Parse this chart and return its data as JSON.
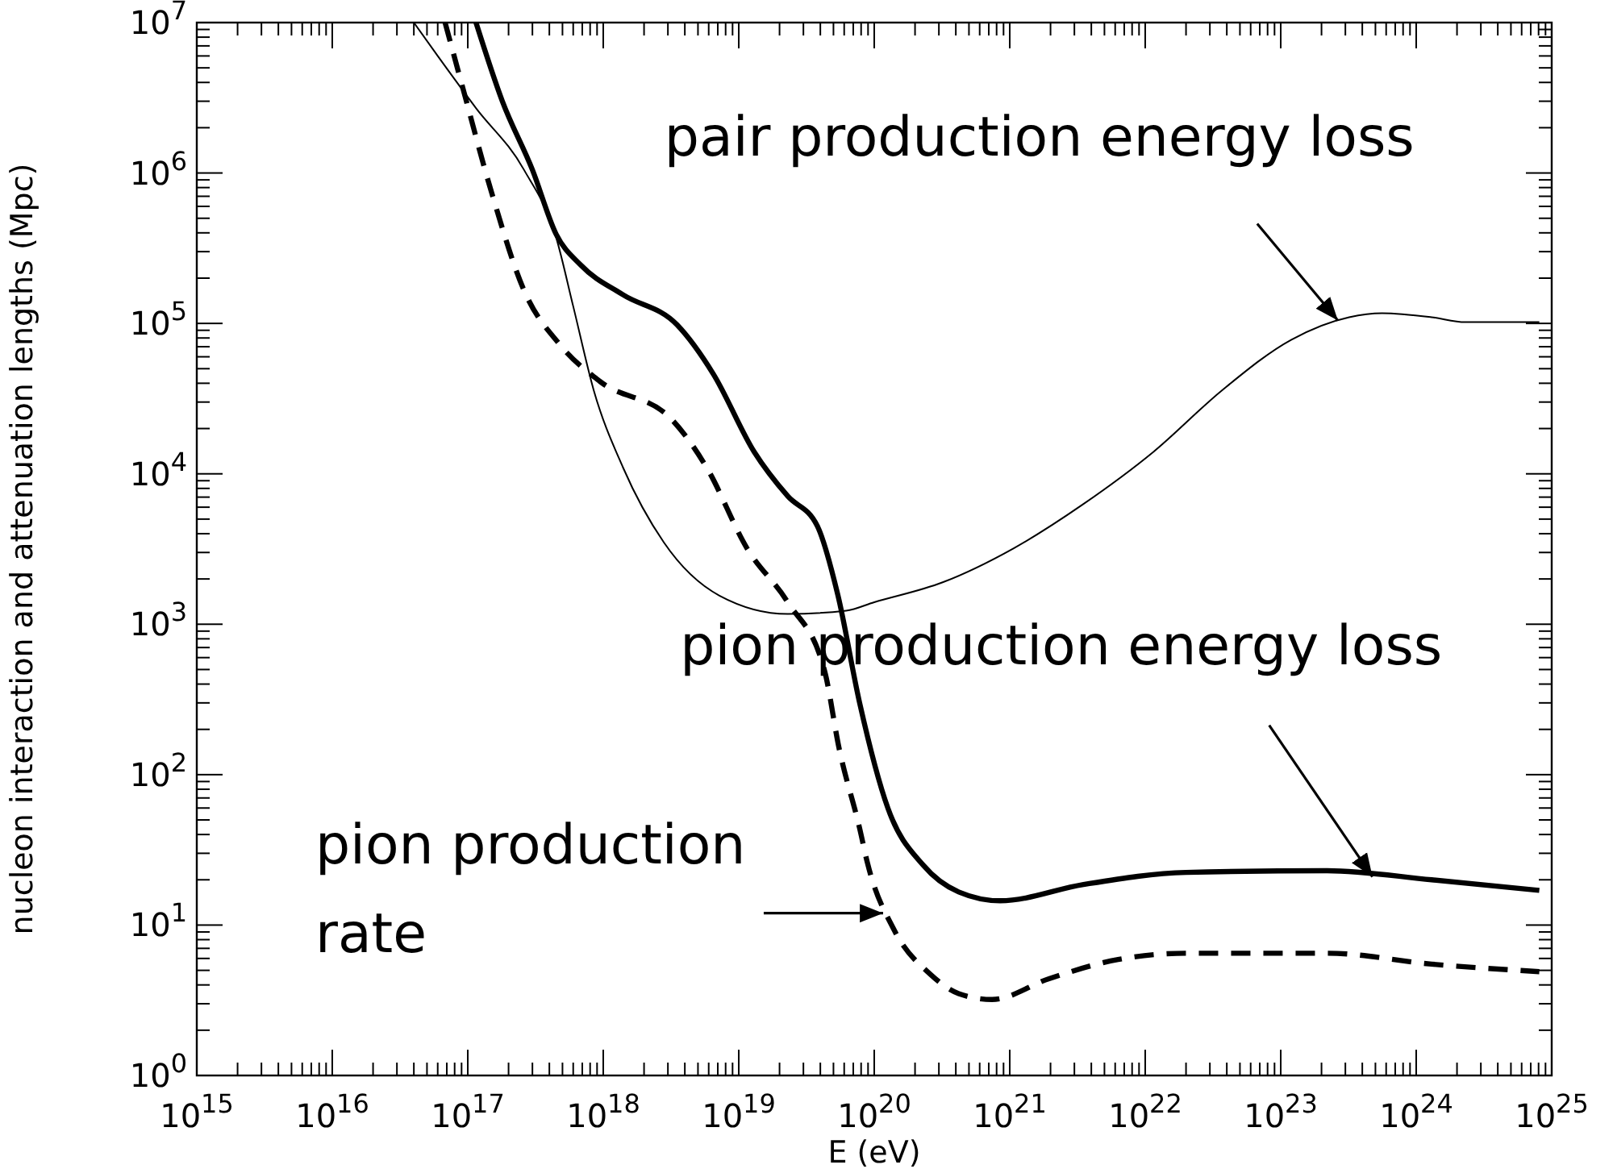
{
  "chart_data": {
    "type": "line",
    "xlabel": "E (eV)",
    "ylabel": "nucleon interaction and attenuation lengths (Mpc)",
    "log": "xy",
    "grid": false,
    "marker": "none",
    "xlim": [
      1000000000000000.0,
      1e+25
    ],
    "ylim": [
      1,
      10000000.0
    ],
    "xticks": [
      {
        "value": 1000000000000000.0,
        "label": "10$^{15}$"
      },
      {
        "value": 1e+16,
        "label": "10$^{16}$"
      },
      {
        "value": 1e+17,
        "label": "10$^{17}$"
      },
      {
        "value": 1e+18,
        "label": "10$^{18}$"
      },
      {
        "value": 1e+19,
        "label": "10$^{19}$"
      },
      {
        "value": 1e+20,
        "label": "10$^{20}$"
      },
      {
        "value": 1e+21,
        "label": "10$^{21}$"
      },
      {
        "value": 1e+22,
        "label": "10$^{22}$"
      },
      {
        "value": 1e+23,
        "label": "10$^{23}$"
      },
      {
        "value": 1e+24,
        "label": "10$^{24}$"
      },
      {
        "value": 1e+25,
        "label": "10$^{25}$"
      }
    ],
    "yticks": [
      {
        "value": 1,
        "label": "10$^{0}$"
      },
      {
        "value": 10,
        "label": "10$^{1}$"
      },
      {
        "value": 100,
        "label": "10$^{2}$"
      },
      {
        "value": 1000,
        "label": "10$^{3}$"
      },
      {
        "value": 10000,
        "label": "10$^{4}$"
      },
      {
        "value": 100000,
        "label": "10$^{5}$"
      },
      {
        "value": 1000000,
        "label": "10$^{6}$"
      },
      {
        "value": 10000000,
        "label": "10$^{7}$"
      }
    ],
    "series": [
      {
        "color": "#000000",
        "line_style": "solid",
        "x": [
          4e+16,
          6e+16,
          1.15e+17,
          2.6e+17,
          4.5e+17,
          6e+17,
          8.5e+17,
          1.4e+18,
          2.8e+18,
          7.2e+18,
          2.3e+19,
          6.2e+19,
          1e+20,
          3.2e+20,
          1.07e+21,
          3.5e+21,
          1.15e+22,
          3.7e+22,
          1.2e+23,
          3.2e+23,
          5.6e+23,
          1.3e+24,
          2.3e+24,
          8.1e+24
        ],
        "values": [
          10000000.0,
          6000000.0,
          2700000.0,
          1050000.0,
          370000.0,
          130000.0,
          36000.0,
          11000.0,
          3500.0,
          1550.0,
          1170.0,
          1230.0,
          1400.0,
          1900.0,
          3200.0,
          6300.0,
          14000.0,
          36000.0,
          78000.0,
          110000.0,
          117000.0,
          110000.0,
          102000.0,
          102000.0
        ]
      },
      {
        "color": "#000000",
        "line_style": "solid",
        "x": [
          1.15e+17,
          1.8e+17,
          3e+17,
          4.5e+17,
          6.8e+17,
          1.4e+18,
          3.5e+18,
          6.5e+18,
          1.3e+19,
          2.3e+19,
          3.8e+19,
          5.4e+19,
          7.8e+19,
          1.26e+20,
          2.3e+20,
          4.2e+20,
          8.5e+20,
          3.5e+21,
          2e+22,
          2.2e+23,
          1.3e+24,
          8.1e+24
        ],
        "values": [
          10000000.0,
          3000000.0,
          1050000.0,
          390000.0,
          245000.0,
          155000.0,
          98000.0,
          46000.0,
          14000.0,
          7100.0,
          4500.0,
          1550.0,
          300,
          60,
          25,
          16.6,
          14.5,
          18.6,
          22.4,
          23,
          20,
          17
        ]
      },
      {
        "color": "#000000",
        "line_style": "dashed",
        "x": [
          6.8e+16,
          9.1e+16,
          1.5e+17,
          2.6e+17,
          4.8e+17,
          9.5e+17,
          3.2e+18,
          5.8e+18,
          1.15e+19,
          2.3e+19,
          4.3e+19,
          5.5e+19,
          7.8e+19,
          8.9e+19,
          1.4e+20,
          2.6e+20,
          4.2e+20,
          7.4e+20,
          1.95e+21,
          6.3e+21,
          2e+22,
          2.2e+23,
          1.3e+24,
          8.1e+24
        ],
        "values": [
          10000000.0,
          3800000.0,
          740000.0,
          166000.0,
          72000.0,
          41000.0,
          23000.0,
          11000.0,
          3200.0,
          1400.0,
          490,
          150,
          44,
          26,
          9.3,
          4.7,
          3.5,
          3.2,
          4.4,
          5.9,
          6.5,
          6.5,
          5.5,
          4.9
        ]
      }
    ],
    "annotations": [
      {
        "text": "pair production energy loss",
        "x": 2.5e+23,
        "y": 110000.0
      },
      {
        "text": "pion production energy loss",
        "x": 4.5e+23,
        "y": 22
      },
      {
        "text": "pion production rate",
        "x": 1.1e+20,
        "y": 12
      }
    ]
  }
}
